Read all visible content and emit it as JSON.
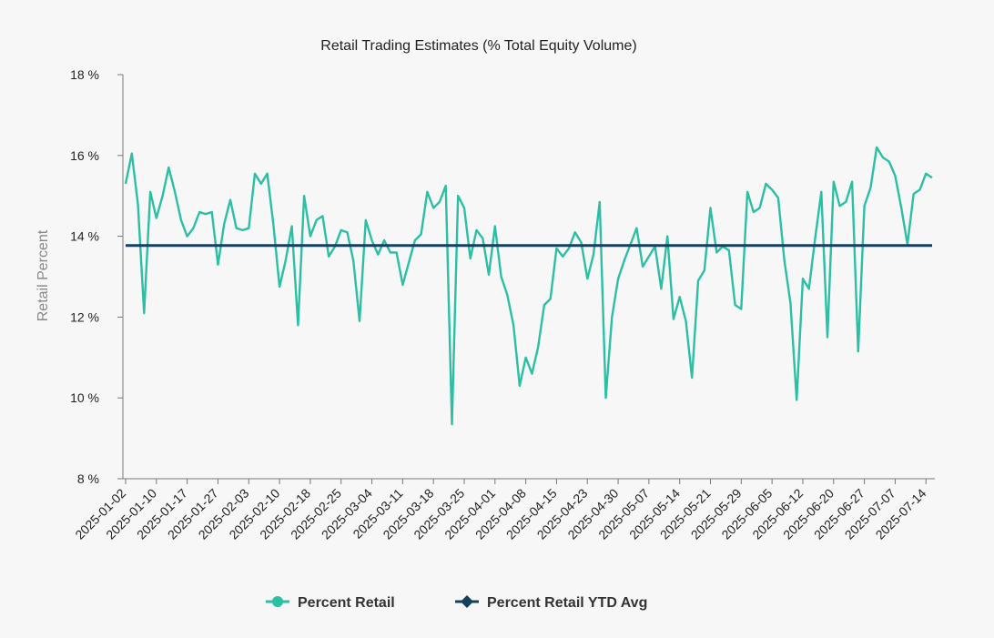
{
  "chart_data": {
    "type": "line",
    "title": "Retail Trading Estimates (% Total Equity Volume)",
    "xlabel": "",
    "ylabel": "Retail Percent",
    "ylim": [
      8,
      18
    ],
    "yticks": [
      8,
      10,
      12,
      14,
      16,
      18
    ],
    "ytick_suffix": " %",
    "grid": false,
    "legend_position": "bottom",
    "xtick_labels": [
      "2025-01-02",
      "2025-01-10",
      "2025-01-17",
      "2025-01-27",
      "2025-02-03",
      "2025-02-10",
      "2025-02-18",
      "2025-02-25",
      "2025-03-04",
      "2025-03-11",
      "2025-03-18",
      "2025-03-25",
      "2025-04-01",
      "2025-04-08",
      "2025-04-15",
      "2025-04-23",
      "2025-04-30",
      "2025-05-07",
      "2025-05-14",
      "2025-05-21",
      "2025-05-29",
      "2025-06-05",
      "2025-06-12",
      "2025-06-20",
      "2025-06-27",
      "2025-07-07",
      "2025-07-14"
    ],
    "xtick_indices": [
      0,
      5,
      10,
      15,
      20,
      25,
      30,
      35,
      40,
      45,
      50,
      55,
      60,
      65,
      70,
      75,
      80,
      85,
      90,
      95,
      100,
      105,
      110,
      115,
      120,
      125,
      130
    ],
    "series": [
      {
        "name": "Percent Retail",
        "color": "#2bbfa4",
        "values": [
          15.3,
          16.05,
          14.8,
          12.1,
          15.1,
          14.45,
          15.0,
          15.7,
          15.1,
          14.4,
          14.0,
          14.2,
          14.6,
          14.55,
          14.6,
          13.3,
          14.3,
          14.9,
          14.2,
          14.15,
          14.2,
          15.55,
          15.3,
          15.55,
          14.3,
          12.75,
          13.4,
          14.25,
          11.8,
          15.0,
          14.0,
          14.4,
          14.5,
          13.5,
          13.75,
          14.15,
          14.1,
          13.4,
          11.9,
          14.4,
          13.9,
          13.55,
          13.9,
          13.6,
          13.6,
          12.8,
          13.35,
          13.9,
          14.05,
          15.1,
          14.7,
          14.85,
          15.25,
          9.35,
          15.0,
          14.7,
          13.45,
          14.15,
          13.95,
          13.05,
          14.25,
          13.0,
          12.55,
          11.8,
          10.3,
          11.0,
          10.6,
          11.25,
          12.3,
          12.45,
          13.7,
          13.5,
          13.7,
          14.1,
          13.85,
          12.95,
          13.55,
          14.85,
          10.0,
          12.0,
          12.95,
          13.4,
          13.8,
          14.2,
          13.25,
          13.5,
          13.75,
          12.7,
          14.0,
          11.95,
          12.5,
          11.9,
          10.5,
          12.9,
          13.15,
          14.7,
          13.6,
          13.75,
          13.65,
          12.3,
          12.2,
          15.1,
          14.6,
          14.7,
          15.3,
          15.15,
          14.95,
          13.4,
          12.35,
          9.95,
          12.95,
          12.7,
          13.95,
          15.1,
          11.5,
          15.35,
          14.75,
          14.85,
          15.35,
          11.15,
          14.75,
          15.2,
          16.2,
          15.95,
          15.85,
          15.5,
          14.7,
          13.8,
          15.05,
          15.15,
          15.55,
          15.45
        ]
      },
      {
        "name": "Percent Retail YTD Avg",
        "color": "#17405e",
        "values": [
          13.77,
          13.77
        ]
      }
    ]
  }
}
